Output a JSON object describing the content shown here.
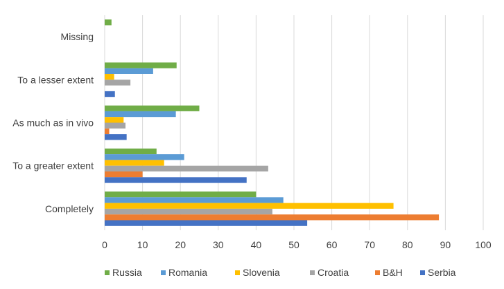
{
  "chart_data": {
    "type": "bar",
    "orientation": "horizontal",
    "categories": [
      "Missing",
      "To a lesser extent",
      "As much as in vivo",
      "To a greater extent",
      "Completely"
    ],
    "series": [
      {
        "name": "Russia",
        "color": "#70AD47",
        "values": [
          1.8,
          19.0,
          25.0,
          13.7,
          40.0
        ]
      },
      {
        "name": "Romania",
        "color": "#5B9BD5",
        "values": [
          0,
          12.8,
          18.8,
          21.0,
          47.2
        ]
      },
      {
        "name": "Slovenia",
        "color": "#FFC000",
        "values": [
          0,
          2.5,
          5.0,
          15.7,
          76.3
        ]
      },
      {
        "name": "Croatia",
        "color": "#A5A5A5",
        "values": [
          0,
          6.8,
          5.5,
          43.2,
          44.3
        ]
      },
      {
        "name": "B&H",
        "color": "#ED7D31",
        "values": [
          0,
          0,
          1.2,
          10.0,
          88.3
        ]
      },
      {
        "name": "Serbia",
        "color": "#4472C4",
        "values": [
          0,
          2.7,
          5.8,
          37.5,
          53.5
        ]
      }
    ],
    "xlim": [
      0,
      100
    ],
    "xticks": [
      0,
      10,
      20,
      30,
      40,
      50,
      60,
      70,
      80,
      90,
      100
    ],
    "grid": "vertical",
    "legend": "bottom",
    "title": "",
    "xlabel": "",
    "ylabel": ""
  }
}
